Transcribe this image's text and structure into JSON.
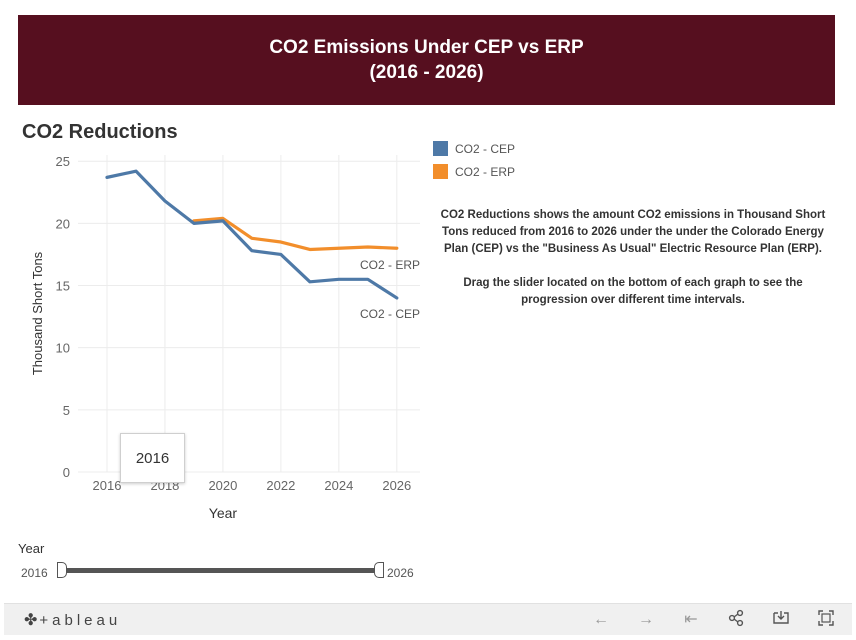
{
  "header": {
    "title_line1": "CO2 Emissions Under CEP vs ERP",
    "title_line2": "(2016 - 2026)"
  },
  "chart_title": "CO2 Reductions",
  "legend": {
    "items": [
      {
        "label": "CO2 - CEP",
        "color": "#4e79a7"
      },
      {
        "label": "CO2 - ERP",
        "color": "#f28e2b"
      }
    ]
  },
  "description": {
    "paragraph1": "CO2 Reductions shows the amount CO2 emissions in Thousand Short Tons reduced from 2016 to 2026 under the under the Colorado Energy Plan (CEP) vs the \"Business As Usual\" Electric Resource Plan (ERP).",
    "paragraph2": "Drag the slider located on the bottom of each graph to see the progression over different time intervals."
  },
  "tooltip": {
    "value": "2016"
  },
  "slider": {
    "label": "Year",
    "min_label": "2016",
    "max_label": "2026"
  },
  "toolbar": {
    "logo_text": "+ableau",
    "buttons": [
      "undo-icon",
      "redo-icon",
      "revert-icon",
      "share-icon",
      "download-icon",
      "fullscreen-icon"
    ]
  },
  "chart_data": {
    "type": "line",
    "xlabel": "Year",
    "ylabel": "Thousand Short Tons",
    "xlim": [
      2015,
      2026.8
    ],
    "ylim": [
      0,
      25.5
    ],
    "xticks": [
      2016,
      2018,
      2020,
      2022,
      2024,
      2026
    ],
    "yticks": [
      0,
      5,
      10,
      15,
      20,
      25
    ],
    "grid": true,
    "series": [
      {
        "name": "CO2 - CEP",
        "color": "#4e79a7",
        "x": [
          2016,
          2017,
          2018,
          2019,
          2020,
          2021,
          2022,
          2023,
          2024,
          2025,
          2026
        ],
        "y": [
          23.7,
          24.2,
          21.8,
          20.0,
          20.2,
          17.8,
          17.5,
          15.3,
          15.5,
          15.5,
          14.0
        ]
      },
      {
        "name": "CO2 - ERP",
        "color": "#f28e2b",
        "x": [
          2019,
          2020,
          2021,
          2022,
          2023,
          2024,
          2025,
          2026
        ],
        "y": [
          20.2,
          20.4,
          18.8,
          18.5,
          17.9,
          18.0,
          18.1,
          18.0
        ]
      }
    ],
    "annotations": [
      {
        "text": "CO2 - ERP",
        "series": "CO2 - ERP"
      },
      {
        "text": "CO2 - CEP",
        "series": "CO2 - CEP"
      }
    ]
  }
}
